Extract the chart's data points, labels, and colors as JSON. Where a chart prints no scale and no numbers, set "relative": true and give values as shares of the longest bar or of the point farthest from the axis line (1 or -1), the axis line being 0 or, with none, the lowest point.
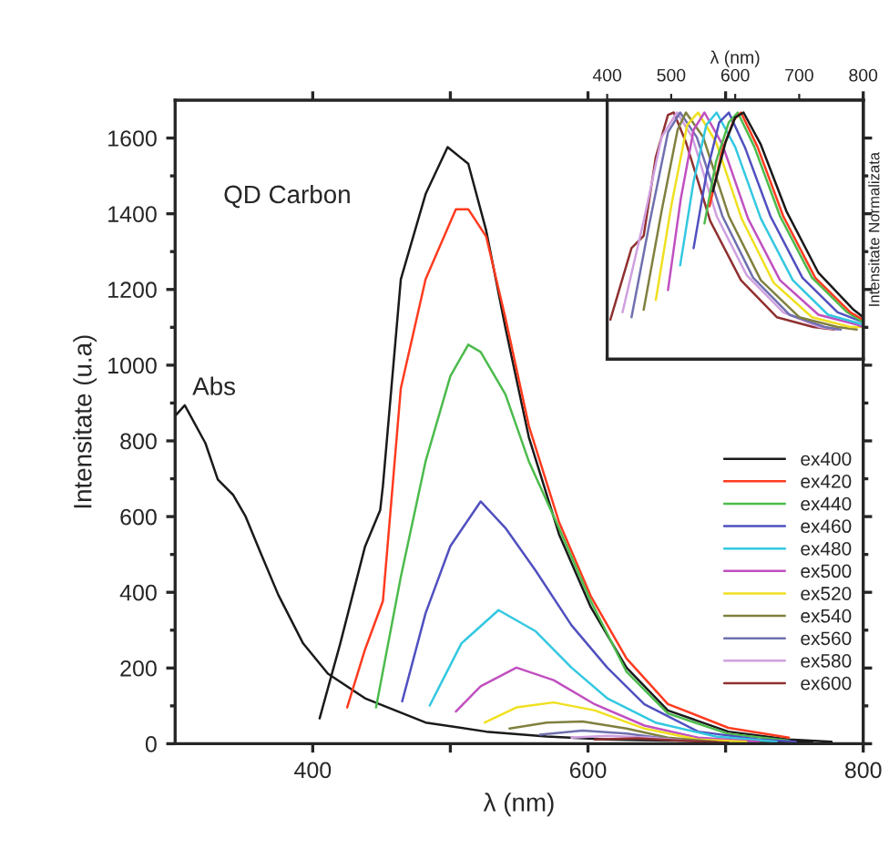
{
  "chart_data": [
    {
      "type": "line",
      "xlabel": "λ (nm)",
      "ylabel": "Intensitate (u.a)",
      "xlim": [
        300,
        800
      ],
      "ylim": [
        0,
        1700
      ],
      "xticks": [
        400,
        {
          "value": 500,
          "label": null
        },
        600,
        {
          "value": 700,
          "label": null
        },
        800
      ],
      "yticks": [
        0,
        {
          "value": 100,
          "label": null
        },
        200,
        {
          "value": 300,
          "label": null
        },
        400,
        {
          "value": 500,
          "label": null
        },
        600,
        {
          "value": 700,
          "label": null
        },
        800,
        {
          "value": 900,
          "label": null
        },
        1000,
        {
          "value": 1100,
          "label": null
        },
        1200,
        {
          "value": 1300,
          "label": null
        },
        1400,
        {
          "value": 1500,
          "label": null
        },
        1600
      ],
      "legend": "right",
      "annotations": [
        "QD Carbon",
        {
          "text": "Abs",
          "x": 307,
          "y": 894
        }
      ],
      "series": [
        {
          "color": "#1a1a1a",
          "x": [
            300,
            307,
            322,
            331,
            342,
            351,
            362,
            375,
            393,
            411,
            438,
            482,
            526,
            570,
            614,
            658,
            702,
            763
          ],
          "values": [
            866,
            894,
            794,
            698,
            658,
            602,
            505,
            393,
            265,
            185,
            120,
            56,
            32,
            19,
            11,
            8,
            8,
            5
          ]
        },
        {
          "name": "ex400",
          "color": "#1a1a1a",
          "x": [
            405,
            420,
            438,
            449,
            451,
            464,
            482,
            498,
            513,
            526,
            540,
            557,
            579,
            602,
            628,
            658,
            702,
            746,
            777
          ],
          "values": [
            67,
            265,
            521,
            617,
            682,
            1227,
            1452,
            1576,
            1532,
            1356,
            1099,
            810,
            553,
            361,
            201,
            88,
            32,
            11,
            5
          ]
        },
        {
          "name": "ex420",
          "color": "#ff3b1f",
          "x": [
            425,
            438,
            451,
            464,
            482,
            504,
            513,
            526,
            540,
            557,
            579,
            602,
            628,
            658,
            702,
            746
          ],
          "values": [
            96,
            249,
            377,
            939,
            1227,
            1412,
            1412,
            1340,
            1125,
            840,
            585,
            390,
            225,
            105,
            42,
            16
          ]
        },
        {
          "name": "ex440",
          "color": "#4cbb4c",
          "x": [
            446,
            464,
            482,
            500,
            513,
            522,
            540,
            557,
            579,
            602,
            628,
            658,
            702,
            746
          ],
          "values": [
            96,
            441,
            746,
            971,
            1054,
            1035,
            923,
            746,
            569,
            377,
            190,
            80,
            26,
            8
          ]
        },
        {
          "name": "ex460",
          "color": "#5050c0",
          "x": [
            465,
            482,
            500,
            522,
            540,
            562,
            588,
            614,
            641,
            680,
            724,
            751
          ],
          "values": [
            112,
            345,
            522,
            640,
            570,
            457,
            313,
            201,
            104,
            32,
            11,
            5
          ]
        },
        {
          "name": "ex480",
          "color": "#33c8e0",
          "x": [
            485,
            508,
            535,
            562,
            588,
            614,
            649,
            693,
            737
          ],
          "values": [
            101,
            265,
            353,
            297,
            201,
            120,
            56,
            19,
            5
          ]
        },
        {
          "name": "ex500",
          "color": "#c050c0",
          "x": [
            504,
            522,
            548,
            575,
            605,
            641,
            680,
            724
          ],
          "values": [
            85,
            152,
            201,
            168,
            104,
            48,
            16,
            5
          ]
        },
        {
          "name": "ex520",
          "color": "#f0e020",
          "x": [
            525,
            548,
            575,
            605,
            641,
            680,
            715
          ],
          "values": [
            56,
            96,
            109,
            88,
            40,
            11,
            5
          ]
        },
        {
          "name": "ex540",
          "color": "#808040",
          "x": [
            543,
            570,
            596,
            628,
            658,
            693
          ],
          "values": [
            40,
            56,
            59,
            40,
            16,
            5
          ]
        },
        {
          "name": "ex560",
          "color": "#7070b0",
          "x": [
            565,
            596,
            628,
            667
          ],
          "values": [
            24,
            35,
            27,
            8
          ]
        },
        {
          "name": "ex580",
          "color": "#d0a0e0",
          "x": [
            588,
            614,
            645,
            680
          ],
          "values": [
            16,
            21,
            16,
            5
          ]
        },
        {
          "name": "ex600",
          "color": "#903030",
          "x": [
            605,
            636,
            667,
            702
          ],
          "values": [
            11,
            14,
            8,
            3
          ]
        }
      ]
    },
    {
      "type": "line",
      "xlabel": "λ (nm)",
      "ylabel": "Intensitate Normalizata",
      "xlim": [
        400,
        800
      ],
      "xticks": [
        400,
        500,
        600,
        700,
        800
      ],
      "relative": true,
      "tick_labels": "x",
      "series": [
        {
          "color": "#903030",
          "x": [
            405,
            438,
            457,
            476,
            495,
            504,
            523,
            561,
            609,
            665,
            722,
            755
          ],
          "values": [
            0.16,
            0.45,
            0.5,
            0.82,
            0.99,
            1.0,
            0.88,
            0.56,
            0.32,
            0.17,
            0.13,
            0.12
          ]
        },
        {
          "color": "#d0a0e0",
          "x": [
            424,
            457,
            485,
            509,
            533,
            571,
            618,
            675,
            732,
            760
          ],
          "values": [
            0.19,
            0.56,
            0.9,
            1.0,
            0.9,
            0.58,
            0.34,
            0.19,
            0.13,
            0.12
          ]
        },
        {
          "color": "#7070b0",
          "x": [
            438,
            466,
            495,
            514,
            540,
            580,
            628,
            685,
            740,
            765
          ],
          "values": [
            0.17,
            0.55,
            0.92,
            1.0,
            0.9,
            0.58,
            0.33,
            0.18,
            0.13,
            0.12
          ]
        },
        {
          "color": "#808040",
          "x": [
            457,
            485,
            510,
            523,
            550,
            590,
            640,
            700,
            760,
            790
          ],
          "values": [
            0.2,
            0.6,
            0.93,
            1.0,
            0.9,
            0.58,
            0.32,
            0.17,
            0.13,
            0.12
          ]
        },
        {
          "color": "#f0e020",
          "x": [
            476,
            500,
            525,
            542,
            570,
            610,
            660,
            720,
            780,
            800
          ],
          "values": [
            0.24,
            0.62,
            0.95,
            1.0,
            0.88,
            0.57,
            0.31,
            0.17,
            0.13,
            0.13
          ]
        },
        {
          "color": "#c050c0",
          "x": [
            495,
            515,
            535,
            552,
            580,
            620,
            670,
            730,
            790,
            800
          ],
          "values": [
            0.28,
            0.65,
            0.93,
            1.0,
            0.87,
            0.57,
            0.32,
            0.18,
            0.14,
            0.13
          ]
        },
        {
          "color": "#33c8e0",
          "x": [
            514,
            535,
            555,
            571,
            600,
            640,
            690,
            745,
            800
          ],
          "values": [
            0.38,
            0.72,
            0.95,
            1.0,
            0.86,
            0.57,
            0.32,
            0.18,
            0.14
          ]
        },
        {
          "color": "#5050c0",
          "x": [
            535,
            555,
            575,
            590,
            615,
            655,
            705,
            760,
            800
          ],
          "values": [
            0.45,
            0.75,
            0.96,
            1.0,
            0.86,
            0.58,
            0.33,
            0.19,
            0.15
          ]
        },
        {
          "color": "#4cbb4c",
          "x": [
            552,
            570,
            590,
            604,
            630,
            670,
            720,
            775,
            800
          ],
          "values": [
            0.55,
            0.8,
            0.96,
            1.0,
            0.86,
            0.58,
            0.33,
            0.19,
            0.15
          ]
        },
        {
          "color": "#ff3b1f",
          "x": [
            560,
            580,
            598,
            609,
            635,
            675,
            725,
            780,
            800
          ],
          "values": [
            0.62,
            0.85,
            0.97,
            1.0,
            0.86,
            0.58,
            0.33,
            0.19,
            0.16
          ]
        },
        {
          "color": "#1a1a1a",
          "x": [
            565,
            585,
            600,
            613,
            640,
            680,
            730,
            785,
            800
          ],
          "values": [
            0.68,
            0.88,
            0.98,
            1.0,
            0.87,
            0.6,
            0.35,
            0.2,
            0.17
          ]
        }
      ]
    }
  ]
}
